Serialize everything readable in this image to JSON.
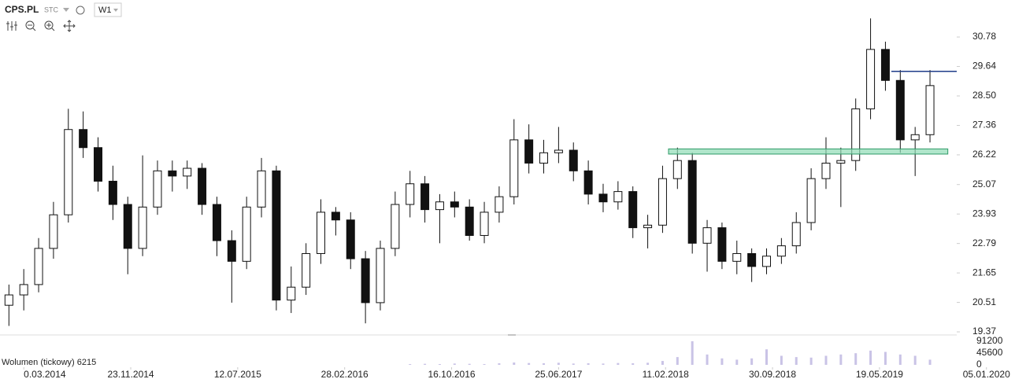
{
  "header": {
    "symbol": "CPS.PL",
    "source": "STC",
    "interval": "W1"
  },
  "chart_data": {
    "type": "candlestick",
    "x": [
      -5,
      0,
      5,
      10,
      15,
      20,
      25,
      30,
      35,
      40,
      45,
      50,
      55,
      60,
      65,
      70,
      75,
      80,
      85,
      90,
      95,
      100,
      105,
      110,
      115,
      120,
      125,
      130,
      135,
      140,
      145,
      150,
      155,
      160,
      165,
      170,
      175,
      180,
      185,
      190,
      195,
      200,
      205,
      210,
      215,
      220,
      225,
      230,
      235,
      240,
      245,
      250,
      255,
      260,
      265,
      270,
      275,
      280,
      285,
      290,
      295,
      300,
      305
    ],
    "open": [
      20.4,
      20.8,
      21.2,
      22.6,
      23.9,
      27.2,
      26.5,
      25.2,
      24.3,
      22.6,
      24.2,
      25.6,
      25.4,
      25.7,
      24.3,
      22.9,
      22.1,
      24.2,
      25.6,
      20.6,
      21.1,
      22.4,
      24.0,
      23.7,
      22.2,
      20.5,
      22.6,
      24.3,
      25.1,
      24.1,
      24.4,
      24.2,
      23.1,
      24.0,
      24.6,
      26.8,
      25.9,
      26.3,
      26.4,
      25.6,
      24.7,
      24.4,
      24.8,
      23.4,
      23.5,
      25.3,
      26.0,
      22.8,
      23.4,
      22.1,
      22.4,
      21.9,
      22.3,
      22.7,
      23.6,
      25.3,
      25.9,
      26.0,
      28.0,
      30.3,
      29.1,
      26.8,
      27.0
    ],
    "high": [
      21.2,
      21.8,
      23.0,
      24.4,
      28.0,
      27.9,
      26.9,
      25.8,
      24.6,
      26.2,
      26.0,
      26.0,
      26.0,
      25.9,
      24.6,
      23.3,
      24.6,
      26.1,
      25.8,
      21.9,
      22.8,
      24.5,
      24.2,
      24.0,
      22.5,
      22.9,
      24.8,
      25.6,
      25.4,
      24.7,
      24.8,
      24.5,
      24.4,
      25.0,
      27.6,
      27.4,
      26.8,
      27.3,
      26.7,
      26.0,
      25.1,
      25.2,
      25.0,
      23.9,
      25.8,
      26.5,
      26.3,
      23.7,
      23.6,
      22.9,
      22.6,
      22.6,
      23.0,
      24.0,
      25.7,
      26.9,
      26.5,
      28.4,
      31.5,
      30.6,
      29.5,
      27.3,
      29.5
    ],
    "low": [
      19.6,
      20.2,
      20.9,
      22.2,
      23.6,
      26.1,
      24.8,
      23.7,
      21.6,
      22.3,
      23.9,
      24.8,
      24.9,
      23.9,
      22.3,
      20.5,
      21.8,
      23.8,
      20.2,
      20.1,
      20.8,
      22.0,
      23.1,
      21.8,
      19.7,
      20.2,
      22.3,
      23.8,
      23.6,
      22.8,
      23.8,
      22.9,
      22.8,
      23.6,
      24.3,
      25.5,
      25.5,
      25.9,
      25.2,
      24.3,
      24.0,
      24.1,
      23.0,
      22.6,
      23.2,
      24.9,
      22.4,
      21.7,
      21.8,
      21.6,
      21.3,
      21.6,
      22.0,
      22.4,
      23.3,
      24.9,
      24.2,
      25.6,
      27.6,
      28.7,
      26.3,
      25.4,
      26.7
    ],
    "close": [
      20.8,
      21.2,
      22.6,
      23.9,
      27.2,
      26.5,
      25.2,
      24.3,
      22.6,
      24.2,
      25.6,
      25.4,
      25.7,
      24.3,
      22.9,
      22.1,
      24.2,
      25.6,
      20.6,
      21.1,
      22.4,
      24.0,
      23.7,
      22.2,
      20.5,
      22.6,
      24.3,
      25.1,
      24.1,
      24.4,
      24.2,
      23.1,
      24.0,
      24.6,
      26.8,
      25.9,
      26.3,
      26.4,
      25.6,
      24.7,
      24.4,
      24.8,
      23.4,
      23.5,
      25.3,
      26.0,
      22.8,
      23.4,
      22.1,
      22.4,
      21.9,
      22.3,
      22.7,
      23.6,
      25.3,
      25.9,
      26.0,
      28.0,
      30.3,
      29.1,
      26.8,
      27.0,
      28.9
    ],
    "xlim": [
      -8,
      314
    ],
    "xticks": [
      {
        "value": 0,
        "label": "0.03.2014"
      },
      {
        "value": 36,
        "label": "23.11.2014"
      },
      {
        "value": 72,
        "label": "12.07.2015"
      },
      {
        "value": 108,
        "label": "28.02.2016"
      },
      {
        "value": 144,
        "label": "16.10.2016"
      },
      {
        "value": 180,
        "label": "25.06.2017"
      },
      {
        "value": 216,
        "label": "11.02.2018"
      },
      {
        "value": 252,
        "label": "30.09.2018"
      },
      {
        "value": 288,
        "label": "19.05.2019"
      },
      {
        "value": 324,
        "label": "05.01.2020"
      }
    ],
    "ylim": [
      19.25,
      32.06
    ],
    "yticks": [
      19.37,
      20.51,
      21.65,
      22.79,
      23.93,
      25.07,
      26.22,
      27.36,
      {
        "value": 28.5,
        "label": "28.50"
      },
      29.64,
      30.78
    ],
    "volume": {
      "name": "Wolumen (tickowy) 6215",
      "color": "#c9c3e6",
      "values": [
        0,
        0,
        0,
        0,
        0,
        0,
        0,
        0,
        0,
        0,
        0,
        0,
        0,
        0,
        0,
        0,
        0,
        0,
        0,
        0,
        0,
        0,
        0,
        0,
        0,
        0,
        0,
        3000,
        4000,
        3000,
        5000,
        4000,
        3000,
        6000,
        9000,
        7000,
        6000,
        8000,
        5000,
        6000,
        5000,
        7000,
        6000,
        8000,
        15000,
        30000,
        91200,
        40000,
        25000,
        20000,
        25000,
        60000,
        35000,
        30000,
        28000,
        35000,
        40000,
        45000,
        55000,
        50000,
        40000,
        35000,
        20000
      ],
      "ylim": [
        -9120,
        112480
      ],
      "yticks": [
        0,
        45600,
        91200
      ]
    },
    "zones": [
      {
        "ylim": [
          26.25,
          26.45
        ],
        "xlim": [
          217,
          311
        ],
        "color": "#8fdcb5"
      }
    ],
    "lines": [
      {
        "y": 29.45,
        "xlim": [
          292,
          314
        ],
        "color": "#1f3c88"
      }
    ],
    "up_color": "#ffffff",
    "down_color": "#111111"
  }
}
